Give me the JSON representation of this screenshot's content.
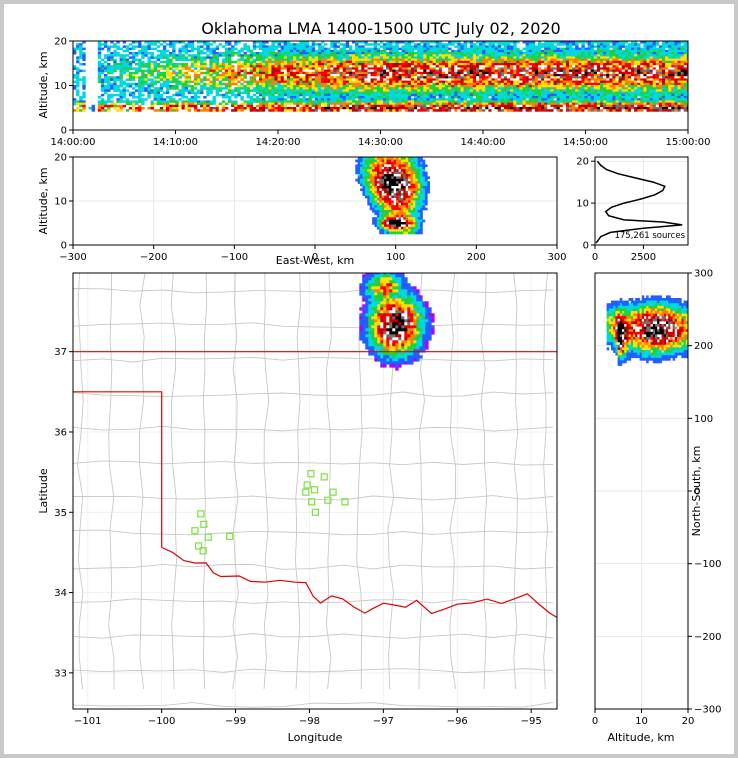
{
  "chart_data": [
    {
      "id": "time_height",
      "type": "heatmap",
      "title": "Oklahoma LMA 1400-1500 UTC July 02, 2020",
      "ylabel": "Altitude, km",
      "ylim": [
        0,
        20
      ],
      "xticks": [
        "14:00:00",
        "14:10:00",
        "14:20:00",
        "14:30:00",
        "14:40:00",
        "14:50:00",
        "15:00:00"
      ],
      "yticks": [
        "0",
        "10",
        "20"
      ]
    },
    {
      "id": "ew_altitude",
      "type": "heatmap",
      "xlabel": "East-West, km",
      "ylabel": "Altitude, km",
      "xlim": [
        -300,
        300
      ],
      "ylim": [
        0,
        20
      ],
      "xticks": [
        "−300",
        "−200",
        "−100",
        "0",
        "100",
        "200",
        "300"
      ],
      "yticks": [
        "0",
        "10",
        "20"
      ]
    },
    {
      "id": "altitude_histogram",
      "type": "line",
      "annotation": "175,261 sources",
      "xlim": [
        0,
        4800
      ],
      "ylim": [
        0,
        21
      ],
      "xticks": [
        "0",
        "2500"
      ],
      "yticks": [
        "0",
        "10",
        "20"
      ],
      "profile": [
        {
          "alt": 0.5,
          "count": 60
        },
        {
          "alt": 2.0,
          "count": 300
        },
        {
          "alt": 3.0,
          "count": 800
        },
        {
          "alt": 4.0,
          "count": 2500
        },
        {
          "alt": 4.8,
          "count": 4500
        },
        {
          "alt": 5.5,
          "count": 3500
        },
        {
          "alt": 6.0,
          "count": 1500
        },
        {
          "alt": 7.0,
          "count": 700
        },
        {
          "alt": 8.0,
          "count": 550
        },
        {
          "alt": 9.0,
          "count": 850
        },
        {
          "alt": 10.0,
          "count": 1500
        },
        {
          "alt": 11.0,
          "count": 2400
        },
        {
          "alt": 12.0,
          "count": 3100
        },
        {
          "alt": 13.0,
          "count": 3500
        },
        {
          "alt": 14.0,
          "count": 3600
        },
        {
          "alt": 15.0,
          "count": 3000
        },
        {
          "alt": 16.0,
          "count": 2100
        },
        {
          "alt": 17.0,
          "count": 1200
        },
        {
          "alt": 18.0,
          "count": 600
        },
        {
          "alt": 19.0,
          "count": 300
        },
        {
          "alt": 20.0,
          "count": 120
        }
      ]
    },
    {
      "id": "plan_view",
      "type": "scatter",
      "xlabel": "Longitude",
      "ylabel": "Latitude",
      "xlim": [
        -101.2,
        -94.65
      ],
      "ylim": [
        32.55,
        37.98
      ],
      "xticks": [
        "−101",
        "−100",
        "−99",
        "−98",
        "−97",
        "−96",
        "−95"
      ],
      "yticks": [
        "33",
        "34",
        "35",
        "36",
        "37"
      ],
      "stations": [
        {
          "lon": -99.55,
          "lat": 34.77
        },
        {
          "lon": -99.43,
          "lat": 34.85
        },
        {
          "lon": -99.37,
          "lat": 34.69
        },
        {
          "lon": -99.5,
          "lat": 34.58
        },
        {
          "lon": -99.44,
          "lat": 34.52
        },
        {
          "lon": -99.08,
          "lat": 34.7
        },
        {
          "lon": -99.47,
          "lat": 34.98
        },
        {
          "lon": -97.98,
          "lat": 35.48
        },
        {
          "lon": -98.03,
          "lat": 35.34
        },
        {
          "lon": -97.8,
          "lat": 35.44
        },
        {
          "lon": -98.05,
          "lat": 35.25
        },
        {
          "lon": -97.93,
          "lat": 35.28
        },
        {
          "lon": -97.97,
          "lat": 35.13
        },
        {
          "lon": -97.92,
          "lat": 35.0
        },
        {
          "lon": -97.75,
          "lat": 35.15
        },
        {
          "lon": -97.68,
          "lat": 35.25
        },
        {
          "lon": -97.52,
          "lat": 35.13
        }
      ],
      "storm_center": {
        "lon": -96.85,
        "lat": 37.35
      }
    },
    {
      "id": "altitude_ns",
      "type": "heatmap",
      "xlabel": "Altitude, km",
      "ylabel": "North-South, km",
      "xlim": [
        0,
        20
      ],
      "ylim": [
        -300,
        300
      ],
      "xticks": [
        "0",
        "10",
        "20"
      ],
      "yticks": [
        "−300",
        "−200",
        "−100",
        "0",
        "100",
        "200",
        "300"
      ]
    }
  ],
  "colors": {
    "border": "#e00000",
    "county_lines": "#c8c8c8",
    "station": "#7be33b",
    "density_scale": [
      "#b000ff",
      "#2060ff",
      "#00d8e0",
      "#20d040",
      "#ffe000",
      "#ff8000",
      "#ff0000",
      "#c00000",
      "#ffffff",
      "#707070",
      "#000000"
    ]
  }
}
